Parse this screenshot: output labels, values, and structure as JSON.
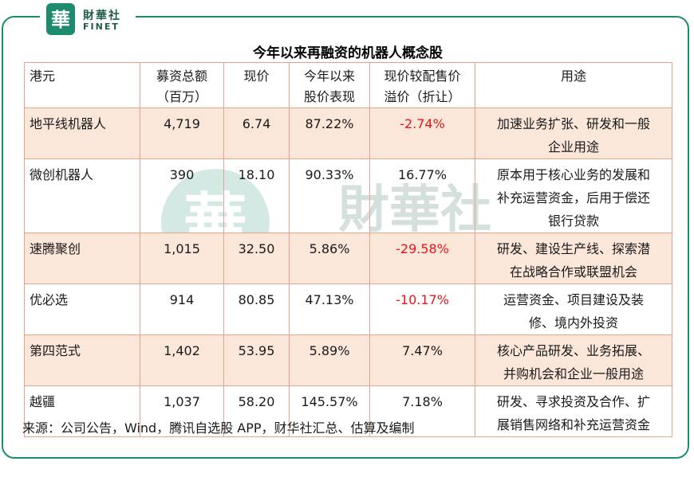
{
  "brand": {
    "name": "財華社",
    "en": "FINET",
    "seal_char": "華",
    "accent": "#1e8b6e"
  },
  "title": "今年以来再融资的机器人概念股",
  "headers": {
    "name": "港元",
    "raise_l1": "募资总额",
    "raise_l2": "（百万）",
    "price": "现价",
    "ytd_l1": "今年以来",
    "ytd_l2": "股价表现",
    "prem_l1": "现价较配售价",
    "prem_l2": "溢价（折让）",
    "use": "用途"
  },
  "rows": [
    {
      "name": "地平线机器人",
      "raise": "4,719",
      "price": "6.74",
      "ytd": "87.22%",
      "prem": "-2.74%",
      "use_l1": "加速业务扩张、研发和一般",
      "use_l2": "企业用途",
      "use_l3": ""
    },
    {
      "name": "微创机器人",
      "raise": "390",
      "price": "18.10",
      "ytd": "90.33%",
      "prem": "16.77%",
      "use_l1": "原本用于核心业务的发展和",
      "use_l2": "补充运营资金，后用于偿还",
      "use_l3": "银行贷款"
    },
    {
      "name": "速腾聚创",
      "raise": "1,015",
      "price": "32.50",
      "ytd": "5.86%",
      "prem": "-29.58%",
      "use_l1": "研发、建设生产线、探索潜",
      "use_l2": "在战略合作或联盟机会",
      "use_l3": ""
    },
    {
      "name": "优必选",
      "raise": "914",
      "price": "80.85",
      "ytd": "47.13%",
      "prem": "-10.17%",
      "use_l1": "运营资金、项目建设及装",
      "use_l2": "修、境内外投资",
      "use_l3": ""
    },
    {
      "name": "第四范式",
      "raise": "1,402",
      "price": "53.95",
      "ytd": "5.89%",
      "prem": "7.47%",
      "use_l1": "核心产品研发、业务拓展、",
      "use_l2": "并购机会和企业一般用途",
      "use_l3": ""
    },
    {
      "name": "越疆",
      "raise": "1,037",
      "price": "58.20",
      "ytd": "145.57%",
      "prem": "7.18%",
      "use_l1": "研发、寻求投资及合作、扩",
      "use_l2": "展销售网络和补充运营资金",
      "use_l3": ""
    }
  ],
  "source": "来源：公司公告，Wind，腾讯自选股 APP，财华社汇总、估算及编制",
  "colors": {
    "negative": "#e01818",
    "shade": "#fbe6da",
    "border": "#e0a48a"
  }
}
